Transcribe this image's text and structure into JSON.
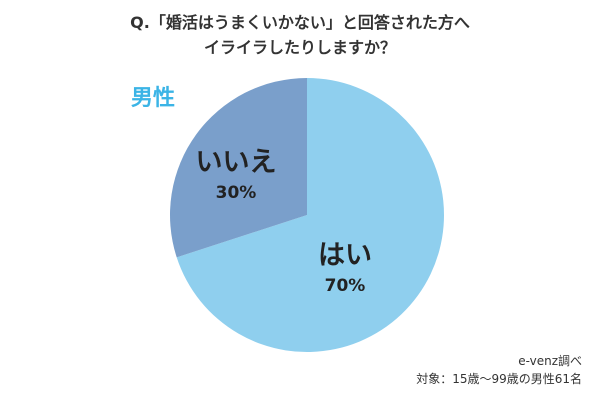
{
  "title_lines": [
    "Q.「婚活はうまくいかない」と回答された方へ",
    "イライラしたりしますか？"
  ],
  "group_label": "男性",
  "source": "e-venz調べ",
  "respondents": "対象：15歳〜99歳の男性61名",
  "colors": {
    "hai": "#8fcfee",
    "iie": "#7a9fcb",
    "group_label": "#3bb4e6"
  },
  "chart_data": {
    "type": "pie",
    "categories": [
      "はい",
      "いいえ"
    ],
    "values": [
      70,
      30
    ],
    "value_labels": [
      "70%",
      "30%"
    ],
    "colors": [
      "#8fcfee",
      "#7a9fcb"
    ],
    "title": "Q.「婚活はうまくいかない」と回答された方へイライラしたりしますか？"
  }
}
